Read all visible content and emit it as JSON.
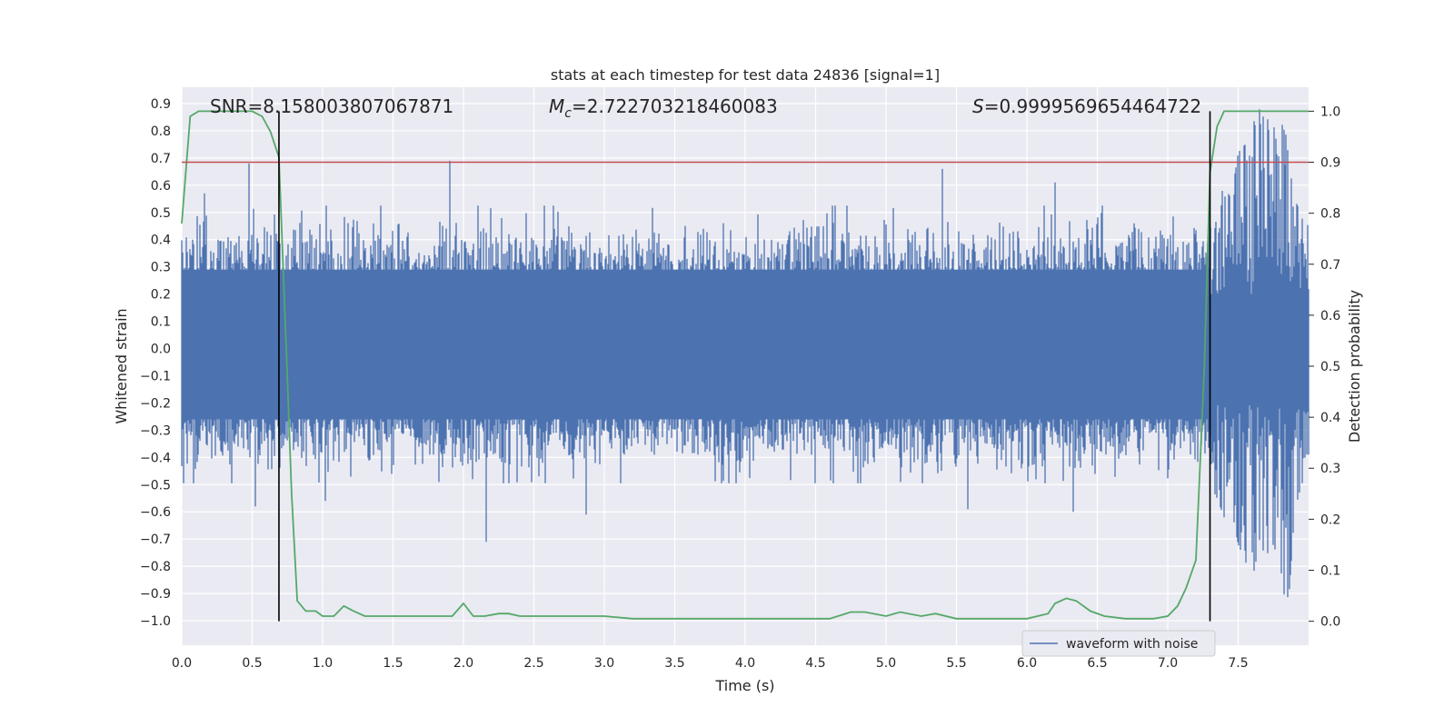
{
  "chart_data": {
    "type": "line",
    "title": "stats at each timestep for test data 24836 [signal=1]",
    "xlabel": "Time (s)",
    "ylabel_left": "Whitened strain",
    "ylabel_right": "Detection probability",
    "xlim": [
      0.0,
      8.0
    ],
    "ylim_left": [
      -1.09,
      0.96
    ],
    "ylim_right": [
      -0.047,
      1.047
    ],
    "x_ticks": [
      "0.0",
      "0.5",
      "1.0",
      "1.5",
      "2.0",
      "2.5",
      "3.0",
      "3.5",
      "4.0",
      "4.5",
      "5.0",
      "5.5",
      "6.0",
      "6.5",
      "7.0",
      "7.5"
    ],
    "y_left_ticks": [
      "0.9",
      "0.8",
      "0.7",
      "0.6",
      "0.5",
      "0.4",
      "0.3",
      "0.2",
      "0.1",
      "0.0",
      "−0.1",
      "−0.2",
      "−0.3",
      "−0.4",
      "−0.5",
      "−0.6",
      "−0.7",
      "−0.8",
      "−0.9",
      "−1.0"
    ],
    "y_right_ticks": [
      "1.0",
      "0.9",
      "0.8",
      "0.7",
      "0.6",
      "0.5",
      "0.4",
      "0.3",
      "0.2",
      "0.1",
      "0.0"
    ],
    "grid": true,
    "legend_placement": "lower-right",
    "annotations": {
      "snr": "SNR=8.158003807067871",
      "mc_symbol": "M",
      "mc_sub": "c",
      "mc_value": "=2.722703218460083",
      "s_symbol": "S",
      "s_value": "=0.9999569654464722"
    },
    "threshold": {
      "axis": "right",
      "value": 0.9,
      "color": "#c44e52"
    },
    "vertical_markers": {
      "x": [
        0.69,
        7.3
      ],
      "color": "#000000"
    },
    "series": [
      {
        "name": "waveform with noise",
        "axis": "left",
        "color": "#4c72b0",
        "kind": "whitened-noise",
        "typical_range": [
          -0.45,
          0.5
        ],
        "x_start": 0.0,
        "x_end": 8.0,
        "spikes": [
          {
            "x": 0.16,
            "y": 0.57
          },
          {
            "x": 0.48,
            "y": 0.68
          },
          {
            "x": 0.52,
            "y": -0.58
          },
          {
            "x": 1.02,
            "y": -0.56
          },
          {
            "x": 1.9,
            "y": 0.69
          },
          {
            "x": 2.16,
            "y": -0.71
          },
          {
            "x": 2.87,
            "y": -0.61
          },
          {
            "x": 5.4,
            "y": 0.66
          },
          {
            "x": 6.2,
            "y": 0.61
          },
          {
            "x": 6.33,
            "y": -0.6
          },
          {
            "x": 5.58,
            "y": -0.59
          }
        ],
        "chirp": {
          "x": [
            7.3,
            7.35,
            7.4,
            7.45,
            7.5,
            7.55,
            7.6,
            7.65,
            7.7,
            7.75,
            7.8,
            7.85,
            7.9,
            7.95,
            8.0
          ],
          "y_max": [
            0.45,
            0.52,
            0.6,
            0.55,
            0.72,
            0.75,
            0.82,
            0.88,
            0.85,
            0.81,
            0.84,
            0.77,
            0.56,
            0.48,
            0.45
          ],
          "y_min": [
            -0.5,
            -0.55,
            -0.62,
            -0.58,
            -0.72,
            -0.78,
            -0.85,
            -0.72,
            -0.76,
            -0.72,
            -0.8,
            -1.0,
            -0.6,
            -0.5,
            -0.45
          ]
        }
      },
      {
        "name": "",
        "axis": "right",
        "color": "#55a868",
        "x": [
          0.0,
          0.06,
          0.12,
          0.2,
          0.3,
          0.4,
          0.5,
          0.57,
          0.63,
          0.69,
          0.74,
          0.78,
          0.82,
          0.88,
          0.95,
          1.0,
          1.08,
          1.15,
          1.22,
          1.3,
          1.4,
          1.55,
          1.7,
          1.85,
          1.92,
          2.0,
          2.07,
          2.15,
          2.25,
          2.32,
          2.4,
          2.5,
          2.6,
          2.75,
          2.9,
          3.0,
          3.2,
          3.5,
          3.8,
          4.0,
          4.3,
          4.6,
          4.75,
          4.85,
          5.0,
          5.1,
          5.25,
          5.35,
          5.5,
          5.8,
          6.0,
          6.15,
          6.2,
          6.28,
          6.35,
          6.45,
          6.55,
          6.7,
          6.9,
          7.0,
          7.07,
          7.13,
          7.2,
          7.26,
          7.3,
          7.35,
          7.4,
          7.5,
          7.55,
          7.6,
          7.7,
          7.8,
          7.9,
          8.0
        ],
        "values": [
          0.78,
          0.99,
          1.0,
          1.0,
          1.0,
          1.0,
          1.0,
          0.99,
          0.96,
          0.91,
          0.55,
          0.25,
          0.04,
          0.02,
          0.02,
          0.01,
          0.01,
          0.03,
          0.02,
          0.01,
          0.01,
          0.01,
          0.01,
          0.01,
          0.01,
          0.035,
          0.01,
          0.01,
          0.015,
          0.015,
          0.01,
          0.01,
          0.01,
          0.01,
          0.01,
          0.01,
          0.005,
          0.005,
          0.005,
          0.005,
          0.005,
          0.005,
          0.018,
          0.018,
          0.01,
          0.018,
          0.01,
          0.015,
          0.005,
          0.005,
          0.005,
          0.015,
          0.035,
          0.045,
          0.04,
          0.02,
          0.01,
          0.005,
          0.005,
          0.01,
          0.03,
          0.065,
          0.12,
          0.5,
          0.88,
          0.97,
          1.0,
          1.0,
          1.0,
          1.0,
          1.0,
          1.0,
          1.0,
          1.0
        ]
      }
    ]
  }
}
